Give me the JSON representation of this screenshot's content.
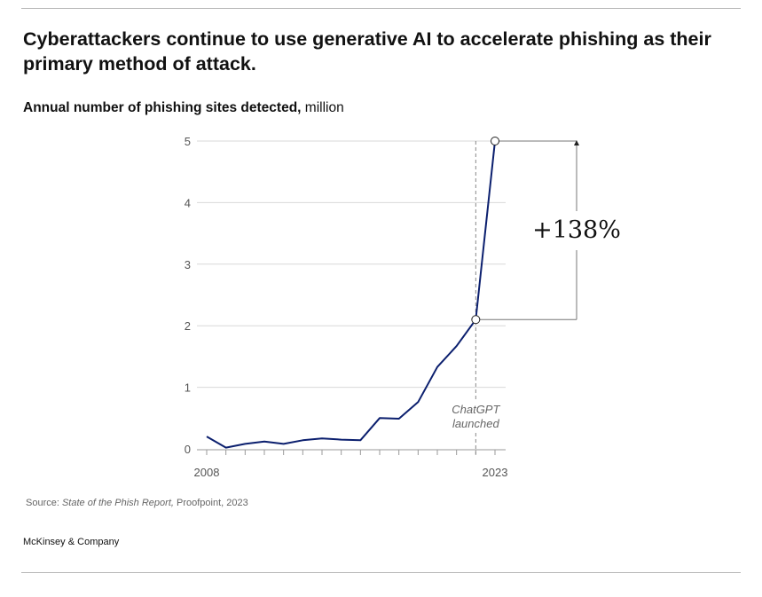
{
  "header": {
    "title": "Cyberattackers continue to use generative AI to accelerate phishing as their primary method of attack.",
    "subtitle_bold": "Annual number of phishing sites detected,",
    "subtitle_unit": " million"
  },
  "chart_data": {
    "type": "line",
    "title": "Annual number of phishing sites detected, million",
    "x": [
      2008,
      2009,
      2010,
      2011,
      2012,
      2013,
      2014,
      2015,
      2016,
      2017,
      2018,
      2019,
      2020,
      2021,
      2022,
      2023
    ],
    "series": [
      {
        "values": [
          0.2,
          0.02,
          0.08,
          0.12,
          0.08,
          0.14,
          0.17,
          0.15,
          0.14,
          0.5,
          0.49,
          0.76,
          1.33,
          1.67,
          2.1,
          5.0
        ],
        "color": "#0b1f6e"
      }
    ],
    "x_tick_labels": [
      "2008",
      "2023"
    ],
    "y_ticks": [
      0,
      1,
      2,
      3,
      4,
      5
    ],
    "ylim": [
      0,
      5
    ],
    "grid": true,
    "annotations": {
      "event_line": {
        "x": 2022,
        "label_line1": "ChatGPT",
        "label_line2": "launched"
      },
      "growth_label": "+138%"
    }
  },
  "footer": {
    "source_prefix": "Source: ",
    "source_italic": "State of the Phish Report,",
    "source_rest": " Proofpoint, 2023",
    "brand": "McKinsey & Company"
  }
}
